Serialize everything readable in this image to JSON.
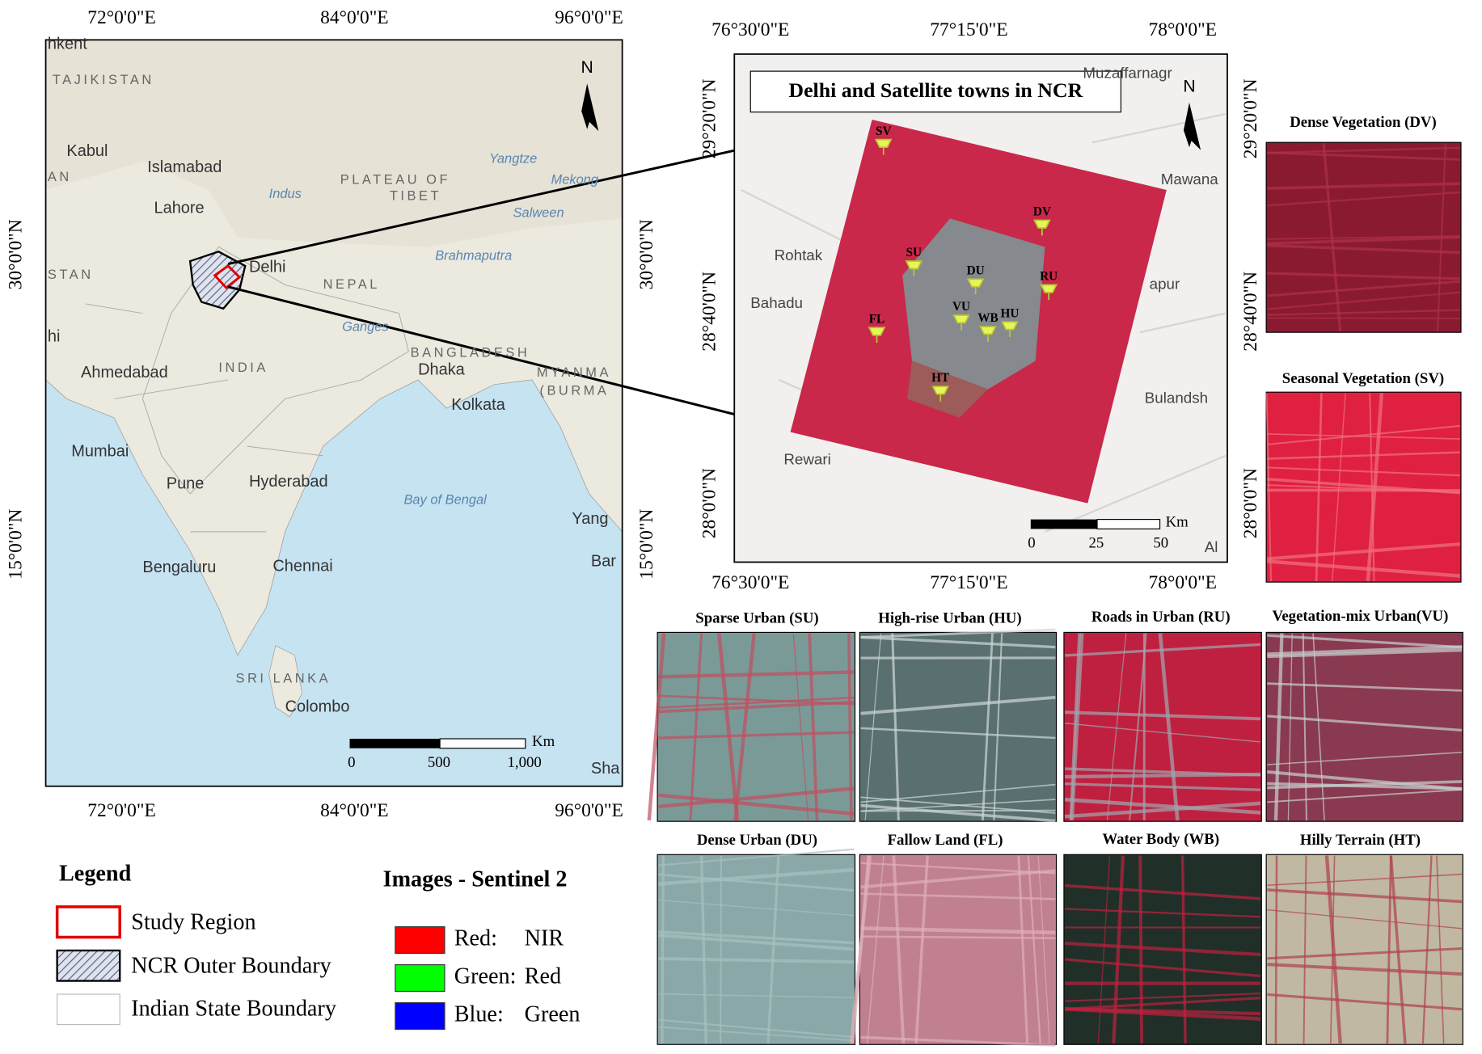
{
  "india_map": {
    "top_labels": [
      "72°0'0\"E",
      "84°0'0\"E",
      "96°0'0\"E"
    ],
    "bottom_labels": [
      "72°0'0\"E",
      "84°0'0\"E",
      "96°0'0\"E"
    ],
    "left_labels": [
      "30°0'0\"N",
      "15°0'0\"N"
    ],
    "right_labels": [
      "30°0'0\"N",
      "15°0'0\"N"
    ],
    "north": "N",
    "places": [
      "hkent",
      "TAJIKISTAN",
      "Kabul",
      "AN",
      "Islamabad",
      "Lahore",
      "STAN",
      "Delhi",
      "NEPAL",
      "PLATEAU OF",
      "TIBET",
      "Yangtze",
      "Indus",
      "Mekong",
      "Salween",
      "Brahmaputra",
      "hi",
      "Ahmedabad",
      "INDIA",
      "BANGLADESH",
      "Dhaka",
      "MYANMA",
      "(BURMA",
      "Kolkata",
      "Mumbai",
      "Pune",
      "Hyderabad",
      "Bay of Bengal",
      "Yang",
      "Bengaluru",
      "Chennai",
      "Bar",
      "SRI LANKA",
      "Colombo",
      "Sha",
      "Ganges"
    ],
    "scale_bar": {
      "unit": "Km",
      "ticks": [
        "0",
        "500",
        "1,000"
      ]
    }
  },
  "ncr_map": {
    "title": "Delhi and Satellite towns in NCR",
    "top_labels": [
      "76°30'0\"E",
      "77°15'0\"E",
      "78°0'0\"E"
    ],
    "bottom_labels": [
      "76°30'0\"E",
      "77°15'0\"E",
      "78°0'0\"E"
    ],
    "left_labels": [
      "29°20'0\"N",
      "28°40'0\"N",
      "28°0'0\"N"
    ],
    "right_labels": [
      "29°20'0\"N",
      "28°40'0\"N",
      "28°0'0\"N"
    ],
    "north": "N",
    "places": [
      "Muzaffarnagr",
      "Mawana",
      "Rohtak",
      "Bahadu",
      "apur",
      "Bulandsh",
      "Rewari",
      "Al"
    ],
    "sites": [
      "SV",
      "DV",
      "SU",
      "DU",
      "RU",
      "VU",
      "WB",
      "HU",
      "FL",
      "HT"
    ],
    "scale_bar": {
      "unit": "Km",
      "ticks": [
        "0",
        "25",
        "50"
      ]
    }
  },
  "samples": [
    "Dense Vegetation (DV)",
    "Seasonal Vegetation (SV)",
    "Sparse Urban (SU)",
    "High-rise Urban (HU)",
    "Roads in Urban (RU)",
    "Vegetation-mix Urban(VU)",
    "Dense Urban (DU)",
    "Fallow Land (FL)",
    "Water Body (WB)",
    "Hilly Terrain (HT)"
  ],
  "legend": {
    "title": "Legend",
    "items": [
      "Study Region",
      "NCR Outer Boundary",
      "Indian State Boundary"
    ]
  },
  "bands": {
    "title": "Images - Sentinel 2",
    "items": [
      {
        "band": "Red:",
        "source": "NIR",
        "color": "#ff0000"
      },
      {
        "band": "Green:",
        "source": "Red",
        "color": "#00ff00"
      },
      {
        "band": "Blue:",
        "source": "Green",
        "color": "#0000ff"
      }
    ]
  }
}
